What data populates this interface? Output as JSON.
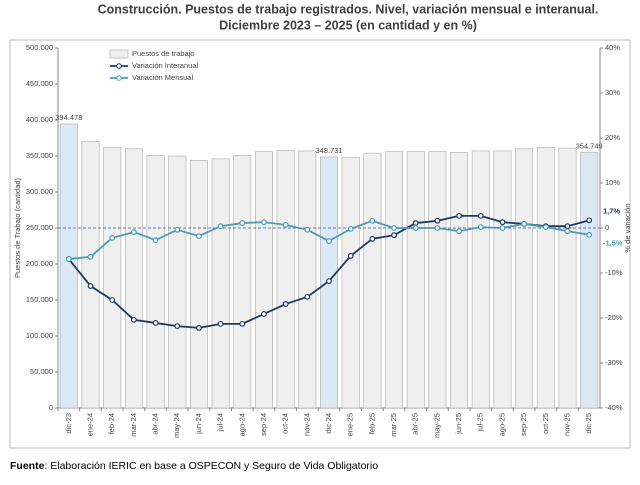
{
  "chart_data": {
    "type": "bar-line",
    "title": "Construcción. Puestos de trabajo registrados. Nivel, variación mensual e interanual.",
    "subtitle": "Diciembre 2023 – 2025 (en cantidad y en %)",
    "y_label": "Puestos de Trabajo (cantidad)",
    "y2_label": "% de variación",
    "categories": [
      "dic-23",
      "ene-24",
      "feb-24",
      "mar-24",
      "abr-24",
      "may-24",
      "jun-24",
      "jul-24",
      "ago-24",
      "sep-24",
      "oct-24",
      "nov-24",
      "dic-24",
      "ene-25",
      "feb-25",
      "mar-25",
      "abr-25",
      "may-25",
      "jun-25",
      "jul-25",
      "ago-25",
      "sep-25",
      "oct-25",
      "nov-25",
      "dic-25"
    ],
    "series": [
      {
        "name": "Puestos de trabajo",
        "kind": "bar",
        "color": "#efefef",
        "values": [
          394478,
          370000,
          362000,
          360000,
          351000,
          350000,
          344000,
          346000,
          351000,
          356000,
          358000,
          357000,
          348731,
          348000,
          354000,
          356000,
          356000,
          356000,
          355000,
          357000,
          357000,
          360000,
          362000,
          361000,
          354749
        ],
        "value_labels": [
          "394.478",
          null,
          null,
          null,
          null,
          null,
          null,
          null,
          null,
          null,
          null,
          null,
          "348.731",
          null,
          null,
          null,
          null,
          null,
          null,
          null,
          null,
          null,
          null,
          null,
          "354.749"
        ],
        "bar_colors": [
          "#dde8f5",
          "#efefef",
          "#efefef",
          "#efefef",
          "#efefef",
          "#efefef",
          "#efefef",
          "#efefef",
          "#efefef",
          "#efefef",
          "#efefef",
          "#efefef",
          "#dde8f5",
          "#efefef",
          "#efefef",
          "#efefef",
          "#efefef",
          "#efefef",
          "#efefef",
          "#efefef",
          "#efefef",
          "#efefef",
          "#efefef",
          "#efefef",
          "#dde8f5"
        ]
      },
      {
        "name": "Variación Interanual",
        "kind": "line",
        "axis": "y2",
        "color": "#1f3864",
        "values": [
          -6.9,
          -12.9,
          -16,
          -20.4,
          -21.1,
          -21.8,
          -22.2,
          -21.3,
          -21.3,
          -19.1,
          -16.9,
          -15.3,
          -11.8,
          -6.2,
          -2.4,
          -1.6,
          1.1,
          1.6,
          2.7,
          2.7,
          1.3,
          0.9,
          0.4,
          0.4,
          1.7
        ],
        "value_labels": [
          null,
          null,
          null,
          null,
          null,
          null,
          null,
          null,
          null,
          null,
          null,
          null,
          null,
          null,
          null,
          null,
          null,
          null,
          null,
          null,
          null,
          null,
          null,
          null,
          "1,7%"
        ]
      },
      {
        "name": "Variación Mensual",
        "kind": "line",
        "axis": "y2",
        "color": "#4a9bb5",
        "values": [
          -6.9,
          -6.4,
          -2.2,
          -0.9,
          -2.7,
          -0.4,
          -1.8,
          0.4,
          1.1,
          1.3,
          0.7,
          -0.4,
          -2.9,
          -0.2,
          1.6,
          0,
          0,
          0,
          -0.7,
          0.2,
          0,
          0.9,
          0.2,
          -0.7,
          -1.5
        ],
        "value_labels": [
          null,
          null,
          null,
          null,
          null,
          null,
          null,
          null,
          null,
          null,
          null,
          null,
          null,
          null,
          null,
          null,
          null,
          null,
          null,
          null,
          null,
          null,
          null,
          null,
          "-1,5%"
        ]
      }
    ],
    "ylim": [
      0,
      500000
    ],
    "yticks": [
      0,
      {
        "value": 50000,
        "label": "50.000"
      },
      {
        "value": 100000,
        "label": "100.000"
      },
      {
        "value": 150000,
        "label": "150.000"
      },
      {
        "value": 200000,
        "label": "200.000"
      },
      {
        "value": 250000,
        "label": "250.000"
      },
      {
        "value": 300000,
        "label": "300.000"
      },
      {
        "value": 350000,
        "label": "350.000"
      },
      {
        "value": 400000,
        "label": "400.000"
      },
      {
        "value": 450000,
        "label": "450.000"
      },
      {
        "value": 500000,
        "label": "500.000"
      }
    ],
    "y2lim": [
      -40,
      40
    ],
    "y2ticks": [
      {
        "value": -40,
        "label": "-40%"
      },
      {
        "value": -30,
        "label": "-30%"
      },
      {
        "value": -20,
        "label": "-20%"
      },
      {
        "value": -10,
        "label": "-10%"
      },
      0,
      {
        "value": 10,
        "label": "10%"
      },
      {
        "value": 20,
        "label": "20%"
      },
      {
        "value": 30,
        "label": "30%"
      },
      {
        "value": 40,
        "label": "40%"
      }
    ],
    "zero_line": true,
    "legend": "top-left",
    "footer": {
      "label": "Fuente",
      "text": ": Elaboración IERIC en base a OSPECON y Seguro de Vida Obligatorio"
    }
  }
}
